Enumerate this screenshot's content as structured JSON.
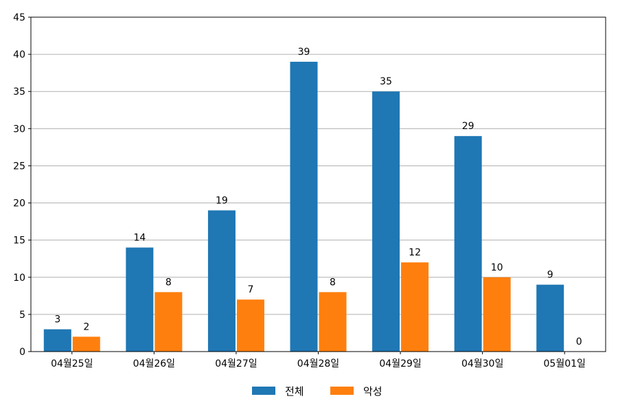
{
  "chart_data": {
    "type": "bar",
    "categories": [
      "04월25일",
      "04월26일",
      "04월27일",
      "04월28일",
      "04월29일",
      "04월30일",
      "05월01일"
    ],
    "series": [
      {
        "name": "전체",
        "values": [
          3,
          14,
          19,
          39,
          35,
          29,
          9
        ],
        "color": "#1f77b4"
      },
      {
        "name": "악성",
        "values": [
          2,
          8,
          7,
          8,
          12,
          10,
          0
        ],
        "color": "#ff7f0e"
      }
    ],
    "ylim": [
      0,
      45
    ],
    "yticks": [
      "0",
      "5",
      "10",
      "15",
      "20",
      "25",
      "30",
      "35",
      "40",
      "45"
    ],
    "grid": true,
    "legend_position": "bottom-center",
    "data_labels": true
  }
}
